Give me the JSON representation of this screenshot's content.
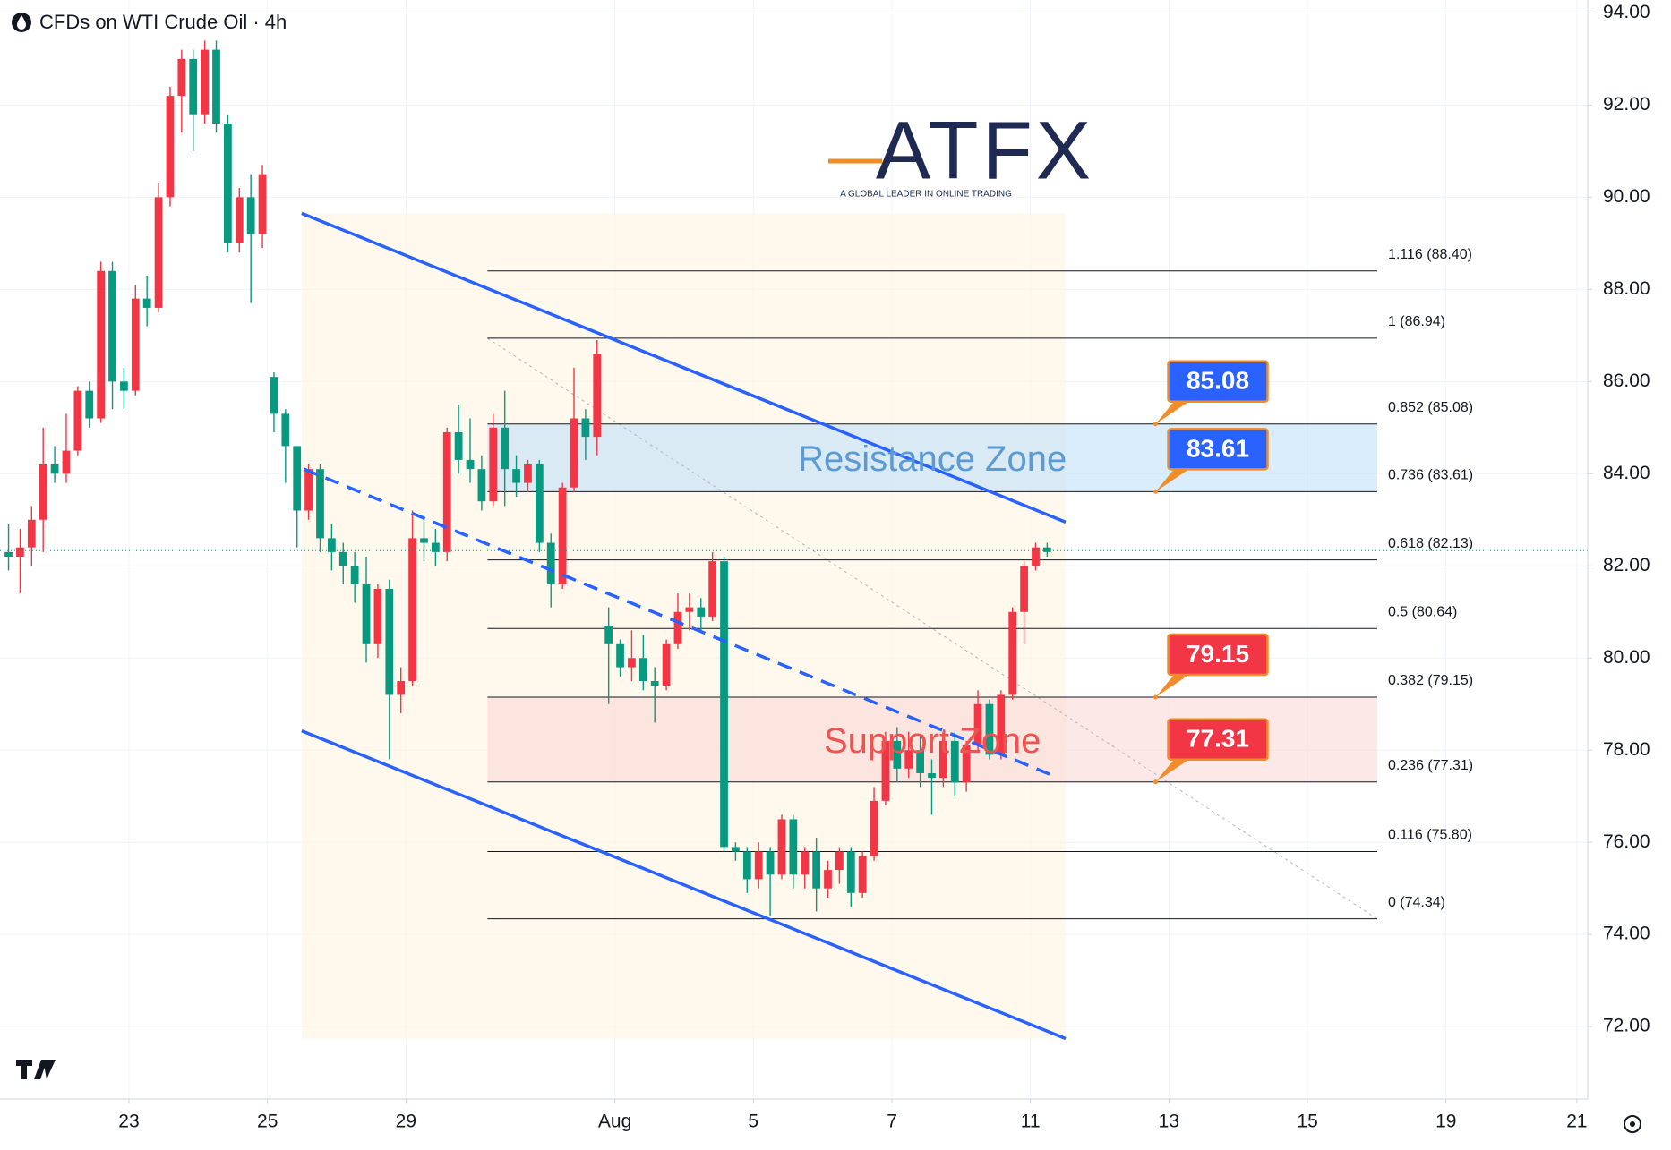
{
  "chart_data": {
    "type": "candlestick",
    "title": "CFDs on WTI Crude Oil · 4h",
    "brand": "ATFX",
    "brand_tagline": "A GLOBAL LEADER IN ONLINE TRADING",
    "up_color": "#f23645",
    "down_color": "#089981",
    "grid": true,
    "x": [
      0,
      1,
      2,
      3,
      4,
      5,
      6,
      7,
      8,
      9,
      10,
      11,
      12,
      13,
      14,
      15,
      16,
      17,
      18,
      19,
      20,
      21,
      22,
      23,
      24,
      25,
      26,
      27,
      28,
      29,
      30,
      31,
      32,
      33,
      34,
      35,
      36,
      37,
      38,
      39,
      40,
      41,
      42,
      43,
      44,
      45,
      46,
      47,
      48,
      49,
      50,
      51,
      52,
      53,
      54,
      55,
      56,
      57,
      58,
      59,
      60,
      61,
      62,
      63,
      64,
      65,
      66,
      67,
      68,
      69,
      70,
      71,
      72,
      73,
      74,
      75,
      76,
      77,
      78,
      79,
      80,
      81,
      82,
      83,
      84,
      85,
      86,
      87,
      88,
      89,
      90
    ],
    "open": [
      82.3,
      82.2,
      82.4,
      83.0,
      84.2,
      84.0,
      84.5,
      85.8,
      85.2,
      88.4,
      86.0,
      85.8,
      87.8,
      87.6,
      90.0,
      92.2,
      93.0,
      91.8,
      93.2,
      91.6,
      89.0,
      90.0,
      89.2,
      86.1,
      85.3,
      84.6,
      83.2,
      84.1,
      82.6,
      82.3,
      82.0,
      81.6,
      80.3,
      81.5,
      79.2,
      79.5,
      82.6,
      82.5,
      82.3,
      84.9,
      84.3,
      84.1,
      83.4,
      85.0,
      84.1,
      83.8,
      84.2,
      82.5,
      81.6,
      83.7,
      85.2,
      84.8,
      80.7,
      80.3,
      79.8,
      80.0,
      79.5,
      79.4,
      80.3,
      81.0,
      81.1,
      80.9,
      82.1,
      75.9,
      75.8,
      75.2,
      75.8,
      75.3,
      76.5,
      75.3,
      75.8,
      75.0,
      75.4,
      75.8,
      74.9,
      75.7,
      76.9,
      78.2,
      77.6,
      78.0,
      77.5,
      77.4,
      78.2,
      77.3,
      78.1,
      79.0,
      77.9,
      79.2,
      81.0,
      82.0,
      82.4
    ],
    "high": [
      82.9,
      82.8,
      83.3,
      85.0,
      84.6,
      85.3,
      85.9,
      86.0,
      88.6,
      88.6,
      86.3,
      88.1,
      88.3,
      90.3,
      92.4,
      93.2,
      93.2,
      93.4,
      93.4,
      91.8,
      90.2,
      90.5,
      90.7,
      86.2,
      85.4,
      84.6,
      84.2,
      84.2,
      82.9,
      82.5,
      82.3,
      82.2,
      81.6,
      81.7,
      79.8,
      83.2,
      83.1,
      82.8,
      85.0,
      85.5,
      85.2,
      84.4,
      85.3,
      85.8,
      84.4,
      84.3,
      84.3,
      82.7,
      83.8,
      86.3,
      85.4,
      86.9,
      81.1,
      80.4,
      80.6,
      80.5,
      79.8,
      80.4,
      81.4,
      81.4,
      81.3,
      82.3,
      82.2,
      76.0,
      75.9,
      76.0,
      75.9,
      76.6,
      76.6,
      75.9,
      76.1,
      75.6,
      75.9,
      75.9,
      75.8,
      77.2,
      78.4,
      78.5,
      78.4,
      78.3,
      77.8,
      78.3,
      78.4,
      78.2,
      79.3,
      79.1,
      79.3,
      81.1,
      82.1,
      82.5,
      82.5
    ],
    "low": [
      81.9,
      81.4,
      82.0,
      82.3,
      83.8,
      83.8,
      84.4,
      85.0,
      85.1,
      85.4,
      85.4,
      85.7,
      87.2,
      87.5,
      89.8,
      91.4,
      91.0,
      91.6,
      91.4,
      88.8,
      88.8,
      87.7,
      88.9,
      84.9,
      83.8,
      82.4,
      83.0,
      82.3,
      81.9,
      81.6,
      81.2,
      79.9,
      80.0,
      77.8,
      78.8,
      79.4,
      82.1,
      82.0,
      82.1,
      84.0,
      83.8,
      83.2,
      83.3,
      83.3,
      83.5,
      83.6,
      82.3,
      81.1,
      81.5,
      83.6,
      84.3,
      84.4,
      79.0,
      79.6,
      79.5,
      79.3,
      78.6,
      79.3,
      80.2,
      80.6,
      80.6,
      80.8,
      75.8,
      75.6,
      74.9,
      75.0,
      74.4,
      75.2,
      75.0,
      75.0,
      74.5,
      74.8,
      75.1,
      74.6,
      74.8,
      75.6,
      76.8,
      77.3,
      77.4,
      77.2,
      76.6,
      77.2,
      77.0,
      77.1,
      78.0,
      77.8,
      77.8,
      79.1,
      80.3,
      81.9,
      82.2
    ],
    "close": [
      82.2,
      82.4,
      83.0,
      84.2,
      84.0,
      84.5,
      85.8,
      85.2,
      88.4,
      86.0,
      85.8,
      87.8,
      87.6,
      90.0,
      92.2,
      93.0,
      91.8,
      93.2,
      91.6,
      89.0,
      90.0,
      89.2,
      90.5,
      85.3,
      84.6,
      83.2,
      84.1,
      82.6,
      82.3,
      82.0,
      81.6,
      80.3,
      81.5,
      79.2,
      79.5,
      82.6,
      82.5,
      82.3,
      84.9,
      84.3,
      84.1,
      83.4,
      85.0,
      84.1,
      83.8,
      84.2,
      82.5,
      81.6,
      83.7,
      85.2,
      84.8,
      86.6,
      80.3,
      79.8,
      80.0,
      79.5,
      79.4,
      80.3,
      81.0,
      81.1,
      80.9,
      82.1,
      75.9,
      75.8,
      75.2,
      75.8,
      75.3,
      76.5,
      75.3,
      75.8,
      75.0,
      75.4,
      75.8,
      74.9,
      75.7,
      76.9,
      78.2,
      77.6,
      78.0,
      77.5,
      77.4,
      78.2,
      77.3,
      78.1,
      79.0,
      77.9,
      79.2,
      81.0,
      82.0,
      82.4,
      82.3
    ],
    "last_price": 82.33,
    "xlim": [
      -0.74,
      136.84
    ],
    "ylim": [
      70.43,
      94.28
    ],
    "xticks": [
      {
        "value": 10.43,
        "label": "23"
      },
      {
        "value": 22.44,
        "label": "25"
      },
      {
        "value": 34.44,
        "label": "29"
      },
      {
        "value": 52.54,
        "label": "Aug"
      },
      {
        "value": 64.54,
        "label": "5"
      },
      {
        "value": 76.55,
        "label": "7"
      },
      {
        "value": 88.55,
        "label": "11"
      },
      {
        "value": 100.55,
        "label": "13"
      },
      {
        "value": 112.56,
        "label": "15"
      },
      {
        "value": 124.56,
        "label": "19"
      },
      {
        "value": 135.9,
        "label": "21"
      }
    ],
    "yticks": [
      {
        "value": 72,
        "label": "72.00"
      },
      {
        "value": 74,
        "label": "74.00"
      },
      {
        "value": 76,
        "label": "76.00"
      },
      {
        "value": 78,
        "label": "78.00"
      },
      {
        "value": 80,
        "label": "80.00"
      },
      {
        "value": 82,
        "label": "82.00"
      },
      {
        "value": 84,
        "label": "84.00"
      },
      {
        "value": 86,
        "label": "86.00"
      },
      {
        "value": 88,
        "label": "88.00"
      },
      {
        "value": 90,
        "label": "90.00"
      },
      {
        "value": 92,
        "label": "92.00"
      },
      {
        "value": 94,
        "label": "94.00"
      }
    ],
    "fib_xlim": [
      41.5,
      118.6
    ],
    "fib_levels": [
      {
        "label": "1.116 (88.40)",
        "value": 88.4
      },
      {
        "label": "1 (86.94)",
        "value": 86.94
      },
      {
        "label": "0.852 (85.08)",
        "value": 85.08
      },
      {
        "label": "0.736 (83.61)",
        "value": 83.61
      },
      {
        "label": "0.618 (82.13)",
        "value": 82.13
      },
      {
        "label": "0.5 (80.64)",
        "value": 80.64
      },
      {
        "label": "0.382 (79.15)",
        "value": 79.15
      },
      {
        "label": "0.236 (77.31)",
        "value": 77.31
      },
      {
        "label": "0.116 (75.80)",
        "value": 75.8
      },
      {
        "label": "0 (74.34)",
        "value": 74.34
      }
    ],
    "zones": [
      {
        "label": "Resistance Zone",
        "range": [
          83.61,
          85.08
        ],
        "fill": "#bbdefb",
        "text_color": "#5b9bd5"
      },
      {
        "label": "Support Zone",
        "range": [
          77.31,
          79.15
        ],
        "fill": "#fcd5d5",
        "text_color": "#ef5350"
      }
    ],
    "callout_x": 99.4,
    "callouts": [
      {
        "value": 85.08,
        "color": "#2962ff"
      },
      {
        "value": 83.61,
        "color": "#2962ff"
      },
      {
        "value": 79.15,
        "color": "#f23645"
      },
      {
        "value": 77.31,
        "color": "#f23645"
      }
    ],
    "channel": {
      "color": "#2962ff",
      "upper": [
        [
          25.4,
          89.65
        ],
        [
          91.6,
          82.95
        ]
      ],
      "lower": [
        [
          25.4,
          78.42
        ],
        [
          91.6,
          71.74
        ]
      ],
      "mid": [
        [
          25.6,
          84.1
        ],
        [
          90.2,
          77.48
        ]
      ]
    }
  }
}
